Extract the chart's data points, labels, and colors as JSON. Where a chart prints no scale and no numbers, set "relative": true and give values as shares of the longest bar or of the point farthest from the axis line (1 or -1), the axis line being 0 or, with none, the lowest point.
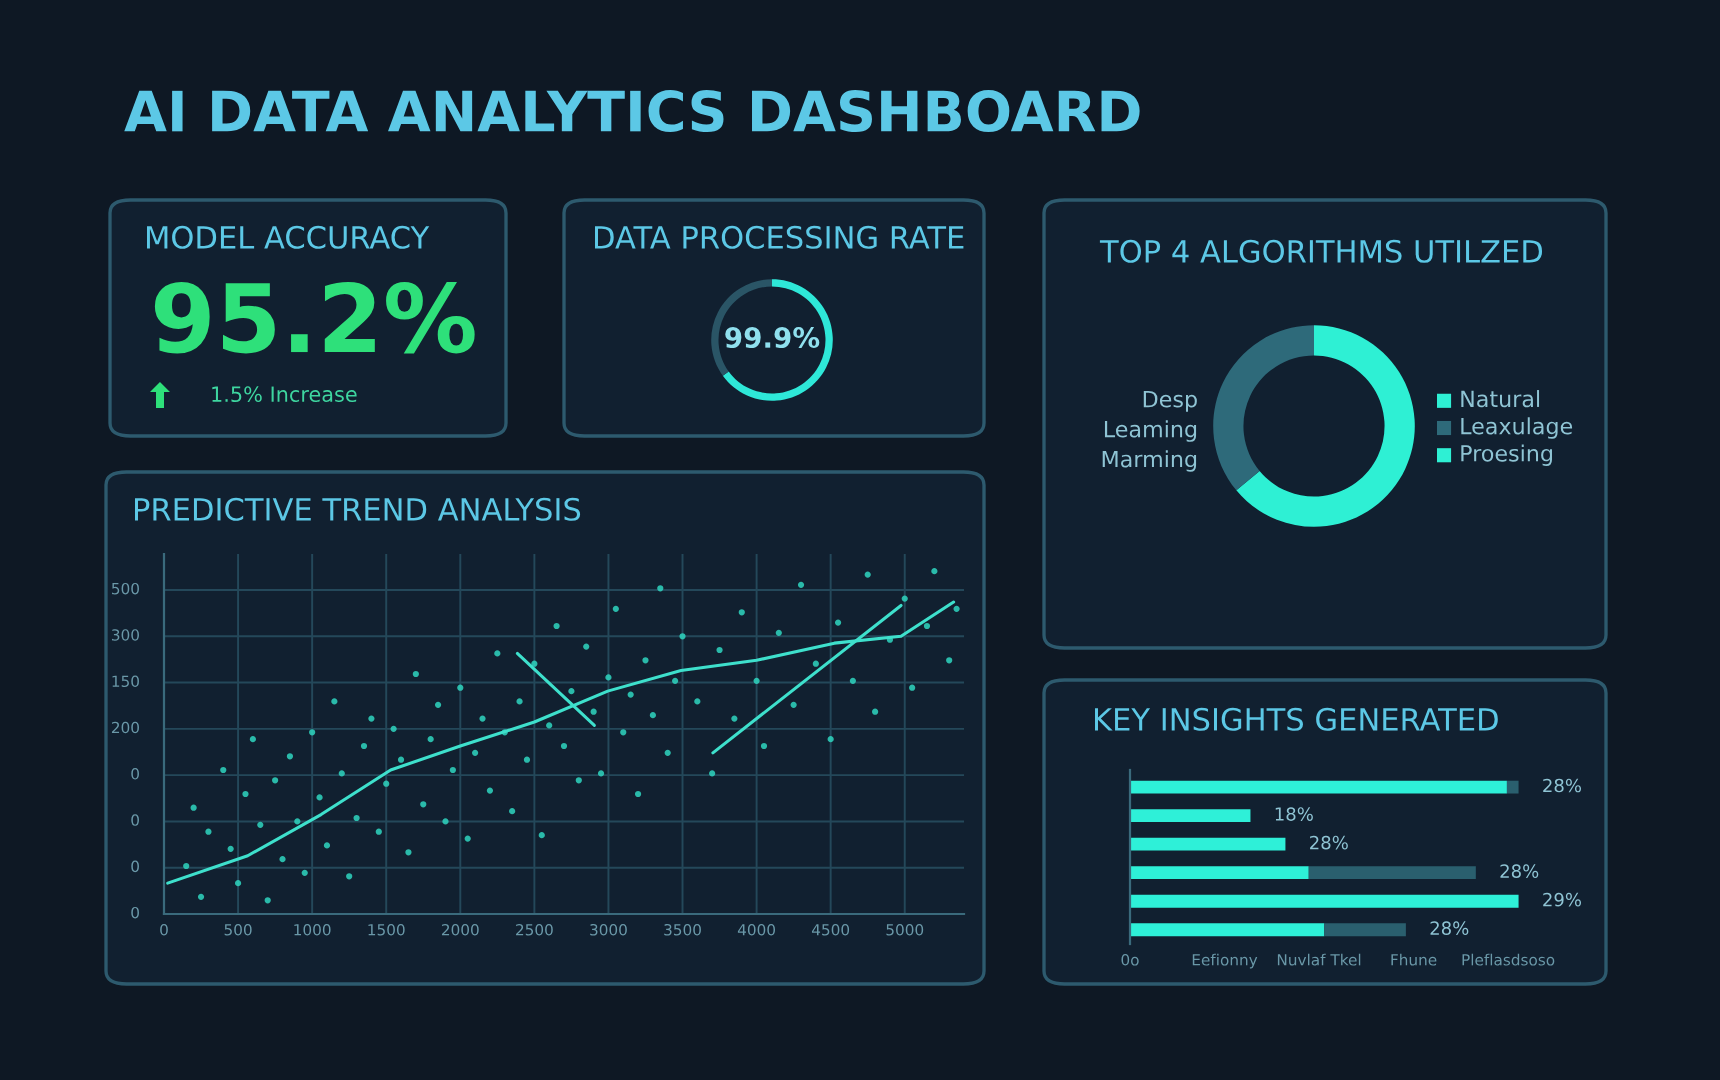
{
  "chart_data": [
    {
      "type": "other",
      "title": "AI DATA ANALYTICS DASHBOARD"
    },
    {
      "type": "other",
      "title": "MODEL ACCURACY",
      "annotations": [
        "95.2%",
        "1.5% Increase"
      ]
    },
    {
      "type": "donut",
      "title": "DATA PROCESSING RATE",
      "categories": [
        null,
        null
      ],
      "values": [
        65,
        35
      ],
      "colors": [
        "#2ee8d8",
        "#2a5566"
      ],
      "annotations": [
        "99.9%"
      ]
    },
    {
      "type": "donut",
      "title": "TOP 4 ALGORITHMS UTILZED",
      "categories": [
        null,
        "Desp\nLeaming\nMarming"
      ],
      "values": [
        64,
        36
      ],
      "colors": [
        "#2ef0d4",
        "#2e6a7a"
      ],
      "annotations": [
        "Natural",
        "Leaxulage",
        "Proesing"
      ]
    },
    {
      "type": "scatter",
      "title": "PREDICTIVE TREND ANALYSIS",
      "relative": true,
      "xlim": [
        0,
        5400
      ],
      "xticks": [
        0,
        500,
        1000,
        1500,
        2000,
        2500,
        3000,
        3500,
        4000,
        4500,
        5000
      ],
      "annotations": [
        "0",
        "0",
        "0",
        "0",
        "200",
        "150",
        "300",
        "500"
      ],
      "grid": true,
      "series": [
        {
          "type": "scatter",
          "color": "#2fd6c0",
          "x": [
            150,
            200,
            250,
            300,
            400,
            450,
            500,
            550,
            600,
            650,
            700,
            750,
            800,
            850,
            900,
            950,
            1000,
            1050,
            1100,
            1150,
            1200,
            1250,
            1300,
            1350,
            1400,
            1450,
            1500,
            1550,
            1600,
            1650,
            1700,
            1750,
            1800,
            1850,
            1900,
            1950,
            2000,
            2050,
            2100,
            2150,
            2200,
            2250,
            2300,
            2350,
            2400,
            2450,
            2500,
            2550,
            2600,
            2650,
            2700,
            2750,
            2800,
            2850,
            2900,
            2950,
            3000,
            3050,
            3100,
            3150,
            3200,
            3250,
            3300,
            3350,
            3400,
            3450,
            3500,
            3600,
            3700,
            3750,
            3850,
            3900,
            4000,
            4050,
            4150,
            4250,
            4300,
            4400,
            4500,
            4550,
            4650,
            4750,
            4800,
            4900,
            5000,
            5050,
            5150,
            5200,
            5300,
            5350
          ],
          "values": [
            0.14,
            0.31,
            0.05,
            0.24,
            0.42,
            0.19,
            0.09,
            0.35,
            0.51,
            0.26,
            0.04,
            0.39,
            0.16,
            0.46,
            0.27,
            0.12,
            0.53,
            0.34,
            0.2,
            0.62,
            0.41,
            0.11,
            0.28,
            0.49,
            0.57,
            0.24,
            0.38,
            0.54,
            0.45,
            0.18,
            0.7,
            0.32,
            0.51,
            0.61,
            0.27,
            0.42,
            0.66,
            0.22,
            0.47,
            0.57,
            0.36,
            0.76,
            0.53,
            0.3,
            0.62,
            0.45,
            0.73,
            0.23,
            0.55,
            0.84,
            0.49,
            0.65,
            0.39,
            0.78,
            0.59,
            0.41,
            0.69,
            0.89,
            0.53,
            0.64,
            0.35,
            0.74,
            0.58,
            0.95,
            0.47,
            0.68,
            0.81,
            0.62,
            0.41,
            0.77,
            0.57,
            0.88,
            0.68,
            0.49,
            0.82,
            0.61,
            0.96,
            0.73,
            0.51,
            0.85,
            0.68,
            0.99,
            0.59,
            0.8,
            0.92,
            0.66,
            0.84,
            1,
            0.74,
            0.89
          ]
        },
        {
          "type": "line",
          "color": "#3ee0cc",
          "x": [
            25,
            565,
            1060,
            1530,
            2000,
            2500,
            2995,
            3490,
            4000,
            4525,
            4975,
            5330
          ],
          "values": [
            0.09,
            0.17,
            0.29,
            0.42,
            0.49,
            0.56,
            0.65,
            0.71,
            0.74,
            0.79,
            0.81,
            0.91
          ]
        },
        {
          "type": "line",
          "color": "#3ee0cc",
          "x": [
            2385,
            2905
          ],
          "values": [
            0.76,
            0.55
          ]
        },
        {
          "type": "line",
          "color": "#3ee0cc",
          "x": [
            3705,
            4975
          ],
          "values": [
            0.47,
            0.9
          ]
        }
      ]
    },
    {
      "type": "bar",
      "title": "KEY INSIGHTS GENERATED",
      "orientation": "horizontal",
      "stacked": true,
      "relative": true,
      "categories": [
        null,
        null,
        null,
        null,
        null,
        null
      ],
      "series": [
        {
          "color": "#2ef0d8",
          "values": [
            0.97,
            0.31,
            0.4,
            0.46,
            1,
            0.5
          ]
        },
        {
          "color": "#2a5f6e",
          "values": [
            0.03,
            null,
            null,
            0.43,
            null,
            0.21
          ]
        }
      ],
      "annotations": [
        "28%",
        "18%",
        "28%",
        "28%",
        "29%",
        "28%",
        "0o",
        "Eefionny",
        "Nuvlaf Tkel",
        "Fhune",
        "Pleflasdsoso"
      ]
    }
  ]
}
